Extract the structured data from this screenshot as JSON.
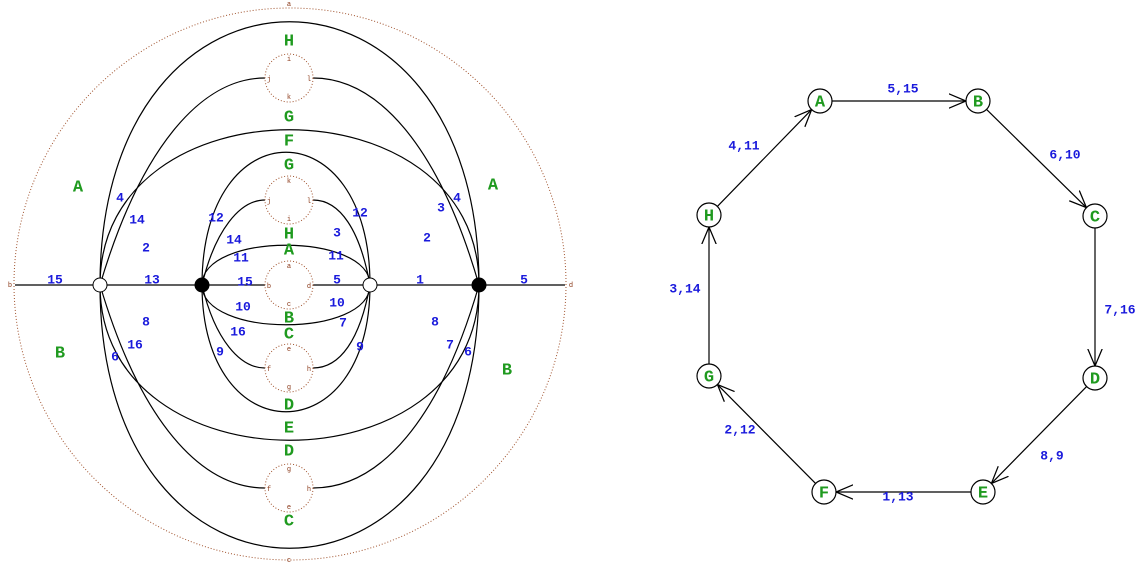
{
  "left_diagram": {
    "outer_labels": [
      "a",
      "b",
      "c",
      "d"
    ],
    "face_labels": [
      "A",
      "B",
      "A",
      "B",
      "H",
      "G",
      "F",
      "G",
      "H",
      "A",
      "B",
      "C",
      "D",
      "E",
      "D",
      "C"
    ],
    "edge_labels": [
      "15",
      "5",
      "13",
      "1",
      "4",
      "4",
      "14",
      "3",
      "2",
      "2",
      "6",
      "6",
      "16",
      "7",
      "8",
      "8",
      "12",
      "12",
      "14",
      "3",
      "11",
      "11",
      "15",
      "5",
      "10",
      "10",
      "16",
      "7",
      "9",
      "9"
    ],
    "circles": [
      [
        "i",
        "j",
        "l",
        "k"
      ],
      [
        "k",
        "j",
        "l",
        "i"
      ],
      [
        "a",
        "b",
        "d",
        "c"
      ],
      [
        "e",
        "f",
        "h",
        "g"
      ],
      [
        "g",
        "f",
        "h",
        "e"
      ]
    ]
  },
  "right_diagram": {
    "nodes": [
      "A",
      "B",
      "C",
      "D",
      "E",
      "F",
      "G",
      "H"
    ],
    "edge_labels": [
      "5,15",
      "6,10",
      "7,16",
      "8,9",
      "1,13",
      "2,12",
      "3,14",
      "4,11"
    ]
  }
}
